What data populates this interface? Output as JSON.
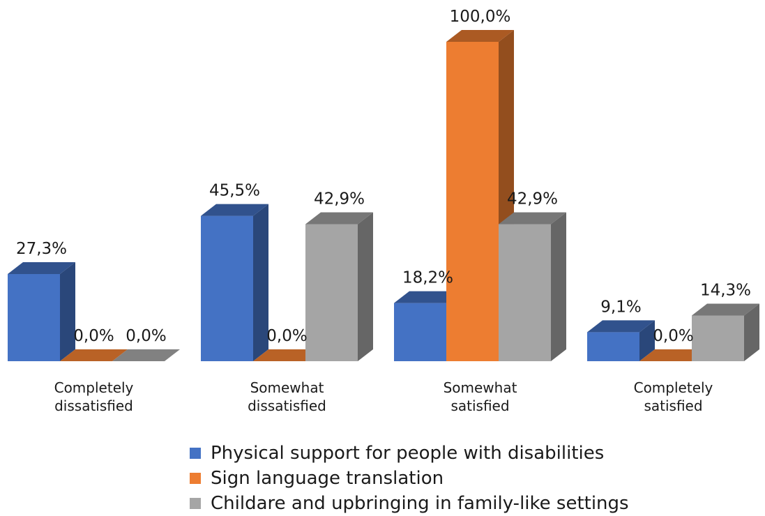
{
  "chart_data": {
    "type": "bar",
    "categories": [
      [
        "Completely",
        "dissatisfied"
      ],
      [
        "Somewhat",
        "dissatisfied"
      ],
      [
        "Somewhat",
        "satisfied"
      ],
      [
        "Completely",
        "satisfied"
      ]
    ],
    "series": [
      {
        "name": "Physical support for people with disabilities",
        "values": [
          27.3,
          45.5,
          18.2,
          9.1
        ],
        "labels": [
          "27,3%",
          "45,5%",
          "18,2%",
          "9,1%"
        ],
        "color": "#4472C4"
      },
      {
        "name": "Sign language translation",
        "values": [
          0.0,
          0.0,
          100.0,
          0.0
        ],
        "labels": [
          "0,0%",
          "0,0%",
          "100,0%",
          "0,0%"
        ],
        "color": "#ED7D31"
      },
      {
        "name": "Childare and upbringing in family-like settings",
        "values": [
          0.0,
          42.9,
          42.9,
          14.3
        ],
        "labels": [
          "0,0%",
          "42,9%",
          "42,9%",
          "14,3%"
        ],
        "color": "#A5A5A5"
      }
    ],
    "style": "3d-clustered-column",
    "legend_position": "bottom",
    "grid": false,
    "ylim": [
      0,
      100
    ]
  }
}
